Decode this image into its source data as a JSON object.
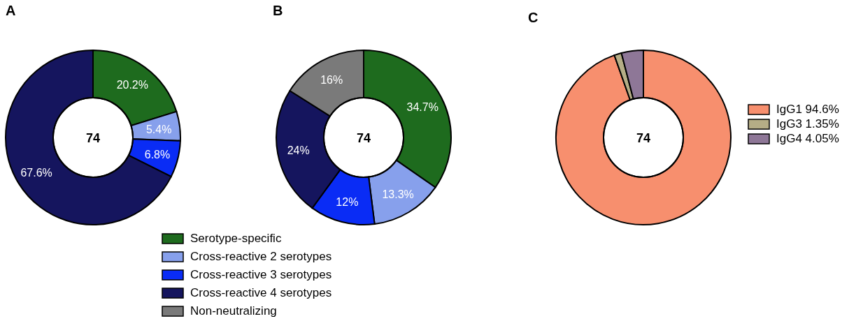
{
  "chart_data": [
    {
      "type": "donut",
      "title": "A",
      "categories": [
        null,
        null,
        null,
        null
      ],
      "values": [
        20.2,
        5.4,
        6.8,
        67.6
      ],
      "colors": [
        "#1e6b1e",
        "#87a0ec",
        "#0a2cf5",
        "#15155e"
      ],
      "value_labels": [
        "20.2%",
        "5.4%",
        "6.8%",
        "67.6%"
      ],
      "annotations": [
        "74"
      ],
      "legend": false
    },
    {
      "type": "donut",
      "title": "B",
      "categories": [
        "Serotype-specific",
        "Cross-reactive 2 serotypes",
        "Cross-reactive 3 serotypes",
        "Cross-reactive 4 serotypes",
        "Non-neutralizing"
      ],
      "values": [
        34.7,
        13.3,
        12,
        24,
        16
      ],
      "colors": [
        "#1e6b1e",
        "#87a0ec",
        "#0a2cf5",
        "#15155e",
        "#7a7a7a"
      ],
      "value_labels": [
        "34.7%",
        "13.3%",
        "12%",
        "24%",
        "16%"
      ],
      "annotations": [
        "74"
      ],
      "legend": "bottom"
    },
    {
      "type": "donut",
      "title": "C",
      "categories": [
        "IgG1 94.6%",
        "IgG3 1.35%",
        "IgG4 4.05%"
      ],
      "values": [
        94.6,
        1.35,
        4.05
      ],
      "colors": [
        "#f78f6e",
        "#b5ad86",
        "#8e7797"
      ],
      "annotations": [
        "74"
      ],
      "legend": "right"
    }
  ]
}
